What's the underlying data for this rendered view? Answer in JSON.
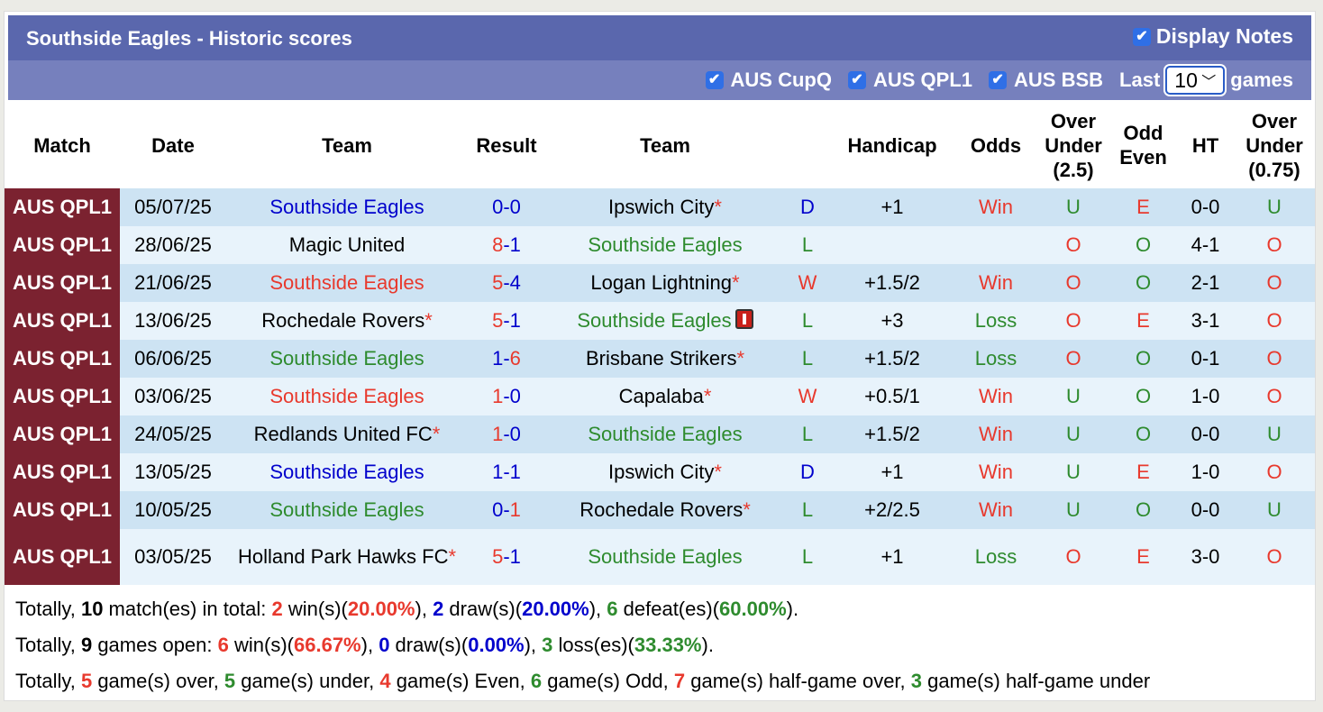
{
  "header": {
    "title": "Southside Eagles - Historic scores",
    "display_notes": "Display Notes"
  },
  "filters": {
    "leagues": [
      "AUS CupQ",
      "AUS QPL1",
      "AUS BSB"
    ],
    "last_label": "Last",
    "last_value": "10",
    "games_label": "games"
  },
  "columns": [
    "Match",
    "Date",
    "Team",
    "Result",
    "Team",
    "",
    "Handicap",
    "Odds",
    "Over Under (2.5)",
    "Odd Even",
    "HT",
    "Over Under (0.75)"
  ],
  "colors": {
    "red": "#e8392d",
    "green": "#2e8b2e",
    "blue": "#0000cc",
    "match_bg": "#7b2230",
    "header_bg": "#5a67ad"
  },
  "rows": [
    {
      "match": "AUS QPL1",
      "date": "05/07/25",
      "home": "Southside Eagles",
      "home_color": "blu",
      "home_star": false,
      "hs": "0",
      "as": "0",
      "win": "none",
      "away": "Ipswich City",
      "away_color": "blk",
      "away_star": true,
      "wl": "D",
      "hcp": "+1",
      "odds": "Win",
      "ou": "U",
      "oe": "E",
      "ht": "0-0",
      "ou2": "U"
    },
    {
      "match": "AUS QPL1",
      "date": "28/06/25",
      "home": "Magic United",
      "home_color": "blk",
      "home_star": false,
      "hs": "8",
      "as": "1",
      "win": "home",
      "away": "Southside Eagles",
      "away_color": "grn",
      "away_star": false,
      "wl": "L",
      "hcp": "",
      "odds": "",
      "ou": "O",
      "oe": "O",
      "ht": "4-1",
      "ou2": "O"
    },
    {
      "match": "AUS QPL1",
      "date": "21/06/25",
      "home": "Southside Eagles",
      "home_color": "red",
      "home_star": false,
      "hs": "5",
      "as": "4",
      "win": "home",
      "away": "Logan Lightning",
      "away_color": "blk",
      "away_star": true,
      "wl": "W",
      "hcp": "+1.5/2",
      "odds": "Win",
      "ou": "O",
      "oe": "O",
      "ht": "2-1",
      "ou2": "O"
    },
    {
      "match": "AUS QPL1",
      "date": "13/06/25",
      "home": "Rochedale Rovers",
      "home_color": "blk",
      "home_star": true,
      "hs": "5",
      "as": "1",
      "win": "home",
      "away": "Southside Eagles",
      "away_color": "grn",
      "away_star": false,
      "away_card": true,
      "wl": "L",
      "hcp": "+3",
      "odds": "Loss",
      "ou": "O",
      "oe": "E",
      "ht": "3-1",
      "ou2": "O"
    },
    {
      "match": "AUS QPL1",
      "date": "06/06/25",
      "home": "Southside Eagles",
      "home_color": "grn",
      "home_star": false,
      "hs": "1",
      "as": "6",
      "win": "away",
      "away": "Brisbane Strikers",
      "away_color": "blk",
      "away_star": true,
      "wl": "L",
      "hcp": "+1.5/2",
      "odds": "Loss",
      "ou": "O",
      "oe": "O",
      "ht": "0-1",
      "ou2": "O"
    },
    {
      "match": "AUS QPL1",
      "date": "03/06/25",
      "home": "Southside Eagles",
      "home_color": "red",
      "home_star": false,
      "hs": "1",
      "as": "0",
      "win": "home",
      "away": "Capalaba",
      "away_color": "blk",
      "away_star": true,
      "wl": "W",
      "hcp": "+0.5/1",
      "odds": "Win",
      "ou": "U",
      "oe": "O",
      "ht": "1-0",
      "ou2": "O"
    },
    {
      "match": "AUS QPL1",
      "date": "24/05/25",
      "home": "Redlands United FC",
      "home_color": "blk",
      "home_star": true,
      "hs": "1",
      "as": "0",
      "win": "home",
      "away": "Southside Eagles",
      "away_color": "grn",
      "away_star": false,
      "wl": "L",
      "hcp": "+1.5/2",
      "odds": "Win",
      "ou": "U",
      "oe": "O",
      "ht": "0-0",
      "ou2": "U"
    },
    {
      "match": "AUS QPL1",
      "date": "13/05/25",
      "home": "Southside Eagles",
      "home_color": "blu",
      "home_star": false,
      "hs": "1",
      "as": "1",
      "win": "none",
      "away": "Ipswich City",
      "away_color": "blk",
      "away_star": true,
      "wl": "D",
      "hcp": "+1",
      "odds": "Win",
      "ou": "U",
      "oe": "E",
      "ht": "1-0",
      "ou2": "O"
    },
    {
      "match": "AUS QPL1",
      "date": "10/05/25",
      "home": "Southside Eagles",
      "home_color": "grn",
      "home_star": false,
      "hs": "0",
      "as": "1",
      "win": "away",
      "away": "Rochedale Rovers",
      "away_color": "blk",
      "away_star": true,
      "wl": "L",
      "hcp": "+2/2.5",
      "odds": "Win",
      "ou": "U",
      "oe": "O",
      "ht": "0-0",
      "ou2": "U"
    },
    {
      "match": "AUS QPL1",
      "date": "03/05/25",
      "home": "Holland Park Hawks FC",
      "home_color": "blk",
      "home_star": true,
      "hs": "5",
      "as": "1",
      "win": "home",
      "away": "Southside Eagles",
      "away_color": "grn",
      "away_star": false,
      "wl": "L",
      "hcp": "+1",
      "odds": "Loss",
      "ou": "O",
      "oe": "E",
      "ht": "3-0",
      "ou2": "O"
    }
  ],
  "footer": [
    [
      [
        "Totally, ",
        "blk"
      ],
      [
        "10",
        "bold"
      ],
      [
        " match(es) in total: ",
        "blk"
      ],
      [
        "2",
        "red"
      ],
      [
        " win(s)(",
        "blk"
      ],
      [
        "20.00%",
        "red"
      ],
      [
        "), ",
        "blk"
      ],
      [
        "2",
        "blu"
      ],
      [
        " draw(s)(",
        "blk"
      ],
      [
        "20.00%",
        "blu"
      ],
      [
        "), ",
        "blk"
      ],
      [
        "6",
        "grn"
      ],
      [
        " defeat(es)(",
        "blk"
      ],
      [
        "60.00%",
        "grn"
      ],
      [
        ").",
        "blk"
      ]
    ],
    [
      [
        "Totally, ",
        "blk"
      ],
      [
        "9",
        "bold"
      ],
      [
        " games open: ",
        "blk"
      ],
      [
        "6",
        "red"
      ],
      [
        " win(s)(",
        "blk"
      ],
      [
        "66.67%",
        "red"
      ],
      [
        "), ",
        "blk"
      ],
      [
        "0",
        "blu"
      ],
      [
        " draw(s)(",
        "blk"
      ],
      [
        "0.00%",
        "blu"
      ],
      [
        "), ",
        "blk"
      ],
      [
        "3",
        "grn"
      ],
      [
        " loss(es)(",
        "blk"
      ],
      [
        "33.33%",
        "grn"
      ],
      [
        ").",
        "blk"
      ]
    ],
    [
      [
        "Totally, ",
        "blk"
      ],
      [
        "5",
        "red"
      ],
      [
        " game(s) over, ",
        "blk"
      ],
      [
        "5",
        "grn"
      ],
      [
        " game(s) under, ",
        "blk"
      ],
      [
        "4",
        "red"
      ],
      [
        " game(s) Even, ",
        "blk"
      ],
      [
        "6",
        "grn"
      ],
      [
        " game(s) Odd, ",
        "blk"
      ],
      [
        "7",
        "red"
      ],
      [
        " game(s) half-game over, ",
        "blk"
      ],
      [
        "3",
        "grn"
      ],
      [
        " game(s) half-game under",
        "blk"
      ]
    ]
  ]
}
